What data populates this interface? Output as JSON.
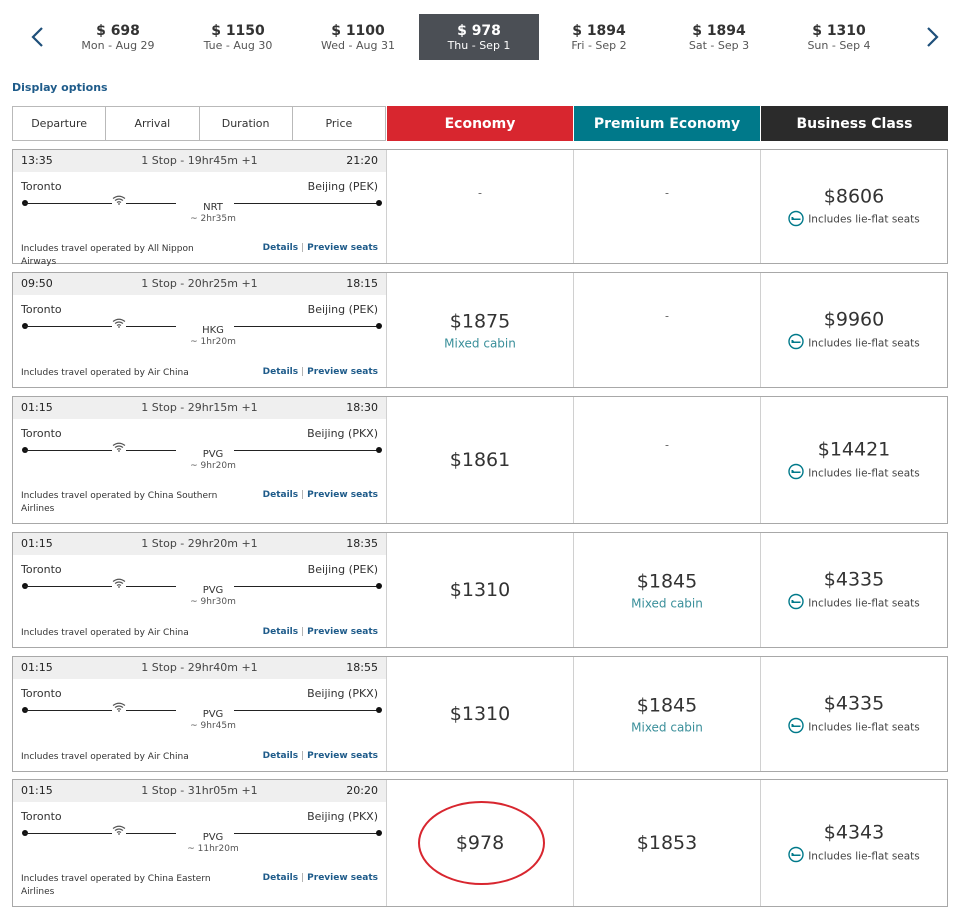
{
  "date_nav": {
    "prev_icon": "chevron-left-icon",
    "next_icon": "chevron-right-icon",
    "dates": [
      {
        "price": "$ 698",
        "date": "Mon - Aug 29",
        "active": false
      },
      {
        "price": "$ 1150",
        "date": "Tue - Aug 30",
        "active": false
      },
      {
        "price": "$ 1100",
        "date": "Wed - Aug 31",
        "active": false
      },
      {
        "price": "$ 978",
        "date": "Thu - Sep 1",
        "active": true
      },
      {
        "price": "$ 1894",
        "date": "Fri - Sep 2",
        "active": false
      },
      {
        "price": "$ 1894",
        "date": "Sat - Sep 3",
        "active": false
      },
      {
        "price": "$ 1310",
        "date": "Sun - Sep 4",
        "active": false
      }
    ]
  },
  "display_options": "Display options",
  "sort_tabs": [
    "Departure",
    "Arrival",
    "Duration",
    "Price"
  ],
  "cabins": {
    "economy": "Economy",
    "premium": "Premium Economy",
    "business": "Business Class"
  },
  "colors": {
    "economy": "#d8262f",
    "premium": "#00798a",
    "business": "#2b2b2b",
    "active_date": "#4b4f55",
    "link": "#1e5b8a",
    "mixed_cabin": "#3a8f9a"
  },
  "links": {
    "details": "Details",
    "separator": "|",
    "preview": "Preview seats"
  },
  "lieflat_label": "Includes lie-flat seats",
  "flights": [
    {
      "dep_time": "13:35",
      "stops": "1 Stop - 19hr45m +1",
      "arr_time": "21:20",
      "origin": "Toronto",
      "dest": "Beijing (PEK)",
      "connection": "NRT",
      "layover": "~ 2hr35m",
      "operator": "Includes travel operated by All Nippon Airways",
      "economy": {
        "price": "",
        "sub": "",
        "dash": "-"
      },
      "premium": {
        "price": "",
        "sub": "",
        "dash": "-"
      },
      "business": {
        "price": "$8606",
        "lieflat": true
      }
    },
    {
      "dep_time": "09:50",
      "stops": "1 Stop - 20hr25m +1",
      "arr_time": "18:15",
      "origin": "Toronto",
      "dest": "Beijing (PEK)",
      "connection": "HKG",
      "layover": "~ 1hr20m",
      "operator": "Includes travel operated by Air China",
      "economy": {
        "price": "$1875",
        "sub": "Mixed cabin",
        "dash": ""
      },
      "premium": {
        "price": "",
        "sub": "",
        "dash": "-"
      },
      "business": {
        "price": "$9960",
        "lieflat": true
      }
    },
    {
      "dep_time": "01:15",
      "stops": "1 Stop - 29hr15m +1",
      "arr_time": "18:30",
      "origin": "Toronto",
      "dest": "Beijing (PKX)",
      "connection": "PVG",
      "layover": "~ 9hr20m",
      "operator": "Includes travel operated by China Southern Airlines",
      "economy": {
        "price": "$1861",
        "sub": "",
        "dash": ""
      },
      "premium": {
        "price": "",
        "sub": "",
        "dash": "-"
      },
      "business": {
        "price": "$14421",
        "lieflat": true
      }
    },
    {
      "dep_time": "01:15",
      "stops": "1 Stop - 29hr20m +1",
      "arr_time": "18:35",
      "origin": "Toronto",
      "dest": "Beijing (PEK)",
      "connection": "PVG",
      "layover": "~ 9hr30m",
      "operator": "Includes travel operated by Air China",
      "economy": {
        "price": "$1310",
        "sub": "",
        "dash": ""
      },
      "premium": {
        "price": "$1845",
        "sub": "Mixed cabin",
        "dash": ""
      },
      "business": {
        "price": "$4335",
        "lieflat": true
      }
    },
    {
      "dep_time": "01:15",
      "stops": "1 Stop - 29hr40m +1",
      "arr_time": "18:55",
      "origin": "Toronto",
      "dest": "Beijing (PKX)",
      "connection": "PVG",
      "layover": "~ 9hr45m",
      "operator": "Includes travel operated by Air China",
      "economy": {
        "price": "$1310",
        "sub": "",
        "dash": ""
      },
      "premium": {
        "price": "$1845",
        "sub": "Mixed cabin",
        "dash": ""
      },
      "business": {
        "price": "$4335",
        "lieflat": true
      }
    },
    {
      "dep_time": "01:15",
      "stops": "1 Stop - 31hr05m +1",
      "arr_time": "20:20",
      "origin": "Toronto",
      "dest": "Beijing (PKX)",
      "connection": "PVG",
      "layover": "~ 11hr20m",
      "operator": "Includes travel operated by China Eastern Airlines",
      "economy": {
        "price": "$978",
        "sub": "",
        "dash": ""
      },
      "premium": {
        "price": "$1853",
        "sub": "",
        "dash": ""
      },
      "business": {
        "price": "$4343",
        "lieflat": true
      }
    }
  ]
}
